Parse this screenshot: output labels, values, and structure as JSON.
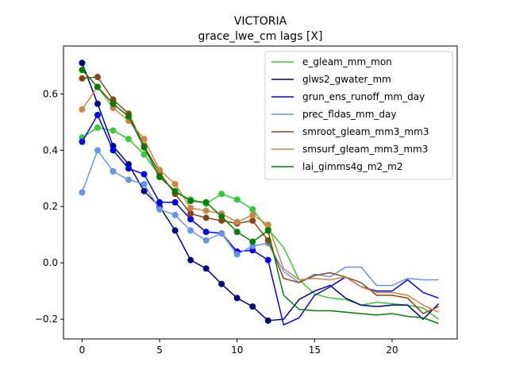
{
  "chart_data": {
    "type": "line",
    "title": "VICTORIA",
    "subtitle": "grace_lwe_cm lags [X]",
    "xlabel": "",
    "ylabel": "",
    "xlim": [
      -1.2,
      24.2
    ],
    "ylim": [
      -0.27,
      0.77
    ],
    "xticks": [
      0,
      5,
      10,
      15,
      20
    ],
    "yticks": [
      -0.2,
      0.0,
      0.2,
      0.4,
      0.6
    ],
    "xtick_labels": [
      "0",
      "5",
      "10",
      "15",
      "20"
    ],
    "ytick_labels": [
      "−0.2",
      "0.0",
      "0.2",
      "0.4",
      "0.6"
    ],
    "grid": false,
    "legend_position": "top-right",
    "marker_points": 13,
    "x": [
      0,
      1,
      2,
      3,
      4,
      5,
      6,
      7,
      8,
      9,
      10,
      11,
      12,
      13,
      14,
      15,
      16,
      17,
      18,
      19,
      20,
      21,
      22,
      23
    ],
    "series": [
      {
        "name": "e_gleam_mm_mon",
        "color": "#32cd32",
        "values": [
          0.445,
          0.48,
          0.47,
          0.44,
          0.385,
          0.31,
          0.25,
          0.225,
          0.21,
          0.245,
          0.225,
          0.19,
          0.12,
          0.055,
          -0.06,
          -0.11,
          -0.125,
          -0.13,
          -0.15,
          -0.14,
          -0.145,
          -0.15,
          -0.16,
          -0.2
        ]
      },
      {
        "name": "glws2_gwater_mm",
        "color": "#00008b",
        "values": [
          0.71,
          0.565,
          0.415,
          0.35,
          0.255,
          0.2,
          0.115,
          0.01,
          -0.02,
          -0.075,
          -0.125,
          -0.155,
          -0.205,
          -0.2,
          -0.13,
          -0.1,
          -0.08,
          -0.125,
          -0.15,
          -0.155,
          -0.15,
          -0.15,
          -0.2,
          -0.145
        ]
      },
      {
        "name": "grun_ens_runoff_mm_day",
        "color": "#0000ff",
        "values": [
          0.43,
          0.525,
          0.4,
          0.335,
          0.315,
          0.215,
          0.215,
          0.155,
          0.11,
          0.105,
          0.04,
          0.045,
          0.01,
          -0.22,
          -0.195,
          -0.115,
          -0.085,
          -0.05,
          -0.085,
          -0.1,
          -0.1,
          -0.06,
          -0.105,
          -0.125
        ]
      },
      {
        "name": "prec_fldas_mm_day",
        "color": "#6495ed",
        "values": [
          0.25,
          0.4,
          0.325,
          0.295,
          0.28,
          0.19,
          0.17,
          0.115,
          0.08,
          0.105,
          0.03,
          0.06,
          0.07,
          -0.03,
          -0.07,
          -0.04,
          -0.05,
          -0.015,
          -0.015,
          -0.08,
          -0.08,
          -0.055,
          -0.06,
          -0.06
        ]
      },
      {
        "name": "smroot_gleam_mm3_mm3",
        "color": "#8b4513",
        "values": [
          0.655,
          0.66,
          0.58,
          0.53,
          0.415,
          0.32,
          0.245,
          0.175,
          0.16,
          0.15,
          0.14,
          0.15,
          0.08,
          -0.055,
          -0.07,
          -0.045,
          -0.035,
          -0.05,
          -0.07,
          -0.115,
          -0.115,
          -0.125,
          -0.18,
          -0.155
        ]
      },
      {
        "name": "smsurf_gleam_mm3_mm3",
        "color": "#cd853f",
        "values": [
          0.545,
          0.625,
          0.55,
          0.505,
          0.44,
          0.33,
          0.28,
          0.195,
          0.185,
          0.175,
          0.145,
          0.17,
          0.135,
          -0.02,
          -0.06,
          -0.055,
          -0.06,
          -0.05,
          -0.085,
          -0.105,
          -0.105,
          -0.115,
          -0.15,
          -0.175
        ]
      },
      {
        "name": "lai_gimms4g_m2_m2",
        "color": "#008000",
        "values": [
          0.685,
          0.625,
          0.565,
          0.52,
          0.41,
          0.305,
          0.255,
          0.22,
          0.215,
          0.165,
          0.11,
          0.075,
          0.115,
          -0.115,
          -0.165,
          -0.17,
          -0.17,
          -0.175,
          -0.18,
          -0.185,
          -0.18,
          -0.19,
          -0.195,
          -0.215
        ]
      }
    ]
  }
}
